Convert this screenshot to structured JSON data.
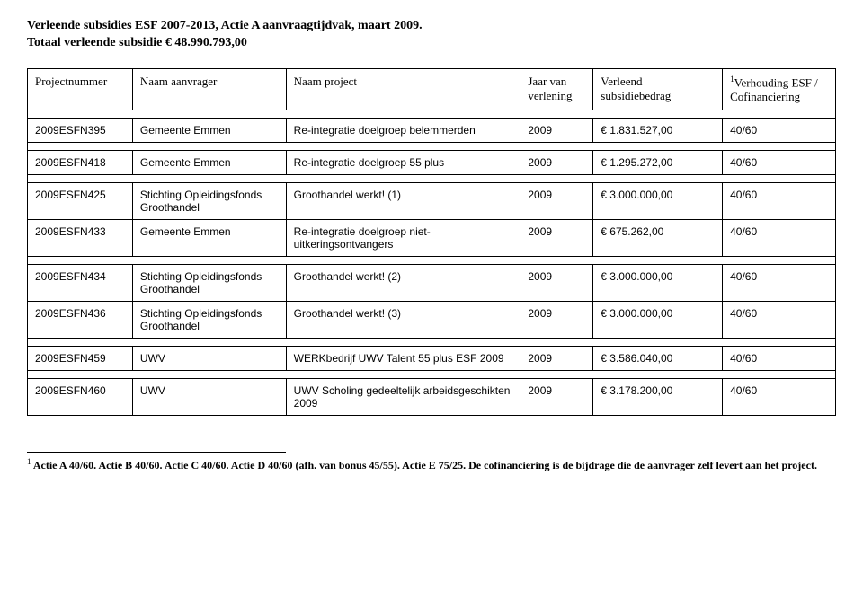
{
  "title": {
    "line1": "Verleende subsidies ESF 2007-2013, Actie A aanvraagtijdvak, maart 2009.",
    "line2": "Totaal verleende subsidie € 48.990.793,00"
  },
  "columns": {
    "c0": "Projectnummer",
    "c1": "Naam aanvrager",
    "c2": "Naam project",
    "c3": "Jaar van verlening",
    "c4": "Verleend subsidiebedrag",
    "c5_sup": "1",
    "c5_a": "Verhouding ESF / Cofinanciering"
  },
  "rows": {
    "r0": {
      "c0": "2009ESFN395",
      "c1": "Gemeente Emmen",
      "c2": "Re-integratie doelgroep belemmerden",
      "c3": "2009",
      "c4": "€ 1.831.527,00",
      "c5": "40/60"
    },
    "r1": {
      "c0": "2009ESFN418",
      "c1": "Gemeente Emmen",
      "c2": "Re-integratie doelgroep 55 plus",
      "c3": "2009",
      "c4": "€ 1.295.272,00",
      "c5": "40/60"
    },
    "r2": {
      "c0": "2009ESFN425",
      "c1": "Stichting Opleidingsfonds Groothandel",
      "c2": "Groothandel werkt! (1)",
      "c3": "2009",
      "c4": "€ 3.000.000,00",
      "c5": "40/60"
    },
    "r3": {
      "c0": "2009ESFN433",
      "c1": "Gemeente Emmen",
      "c2": "Re-integratie doelgroep niet-uitkeringsontvangers",
      "c3": "2009",
      "c4": "€ 675.262,00",
      "c5": "40/60"
    },
    "r4": {
      "c0": "2009ESFN434",
      "c1": "Stichting Opleidingsfonds Groothandel",
      "c2": "Groothandel werkt! (2)",
      "c3": "2009",
      "c4": "€ 3.000.000,00",
      "c5": "40/60"
    },
    "r5": {
      "c0": "2009ESFN436",
      "c1": "Stichting Opleidingsfonds Groothandel",
      "c2": "Groothandel werkt! (3)",
      "c3": "2009",
      "c4": "€ 3.000.000,00",
      "c5": "40/60"
    },
    "r6": {
      "c0": "2009ESFN459",
      "c1": "UWV",
      "c2": "WERKbedrijf UWV Talent 55 plus ESF 2009",
      "c3": "2009",
      "c4": "€ 3.586.040,00",
      "c5": "40/60"
    },
    "r7": {
      "c0": "2009ESFN460",
      "c1": "UWV",
      "c2": "UWV Scholing gedeeltelijk arbeidsgeschikten 2009",
      "c3": "2009",
      "c4": "€ 3.178.200,00",
      "c5": "40/60"
    }
  },
  "footnote": {
    "sup": "1",
    "bold": " Actie A 40/60. Actie B 40/60. Actie C 40/60. Actie D 40/60 (afh. van bonus 45/55). Actie E 75/25. De cofinanciering is de bijdrage die de aanvrager zelf levert aan het project."
  },
  "layout": {
    "col_widths": [
      "13%",
      "19%",
      "29%",
      "9%",
      "16%",
      "14%"
    ]
  }
}
